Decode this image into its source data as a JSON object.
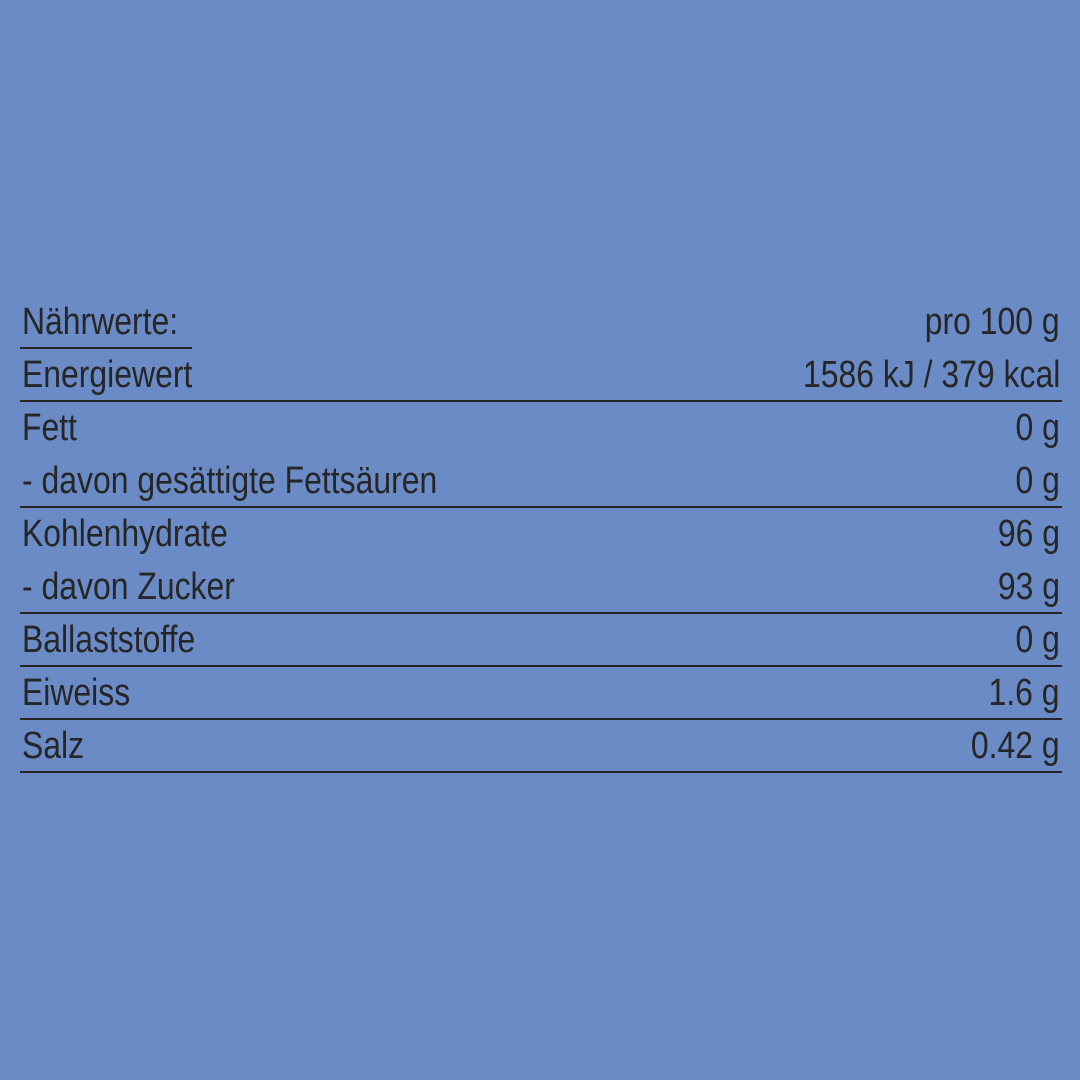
{
  "header": {
    "label": "Nährwerte:",
    "value": "pro 100 g"
  },
  "rows": [
    {
      "label": "Energiewert",
      "value": "1586 kJ / 379 kcal",
      "rule": true
    },
    {
      "label": "Fett",
      "value": "0 g",
      "rule": false
    },
    {
      "label": "- davon gesättigte Fettsäuren",
      "value": "0 g",
      "rule": true
    },
    {
      "label": "Kohlenhydrate",
      "value": "96 g",
      "rule": false
    },
    {
      "label": "- davon Zucker",
      "value": "93 g",
      "rule": true
    },
    {
      "label": "Ballaststoffe",
      "value": "0 g",
      "rule": true
    },
    {
      "label": "Eiweiss",
      "value": "1.6 g",
      "rule": true
    },
    {
      "label": "Salz",
      "value": "0.42 g",
      "rule": true
    }
  ],
  "colors": {
    "background": "#6b8bc6",
    "text": "#262626"
  }
}
